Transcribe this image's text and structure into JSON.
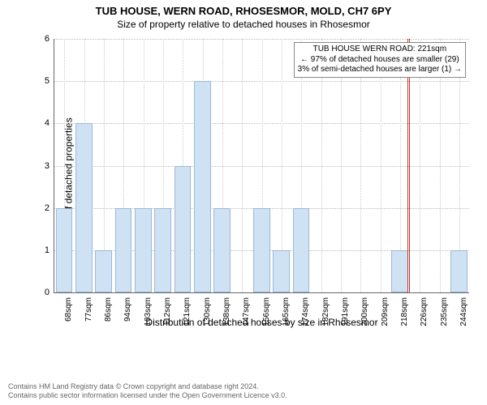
{
  "title": "TUB HOUSE, WERN ROAD, RHOSESMOR, MOLD, CH7 6PY",
  "subtitle": "Size of property relative to detached houses in Rhosesmor",
  "ylabel": "Number of detached properties",
  "xlabel": "Distribution of detached houses by size in Rhosesmor",
  "chart": {
    "type": "bar",
    "ylim": [
      0,
      6
    ],
    "ytick_step": 1,
    "categories": [
      "68sqm",
      "77sqm",
      "86sqm",
      "94sqm",
      "103sqm",
      "112sqm",
      "121sqm",
      "130sqm",
      "138sqm",
      "147sqm",
      "156sqm",
      "165sqm",
      "174sqm",
      "182sqm",
      "191sqm",
      "200sqm",
      "209sqm",
      "218sqm",
      "226sqm",
      "235sqm",
      "244sqm"
    ],
    "values": [
      2,
      4,
      1,
      2,
      2,
      2,
      3,
      5,
      2,
      0,
      2,
      1,
      2,
      0,
      0,
      0,
      0,
      1,
      0,
      0,
      1
    ],
    "bar_color": "#cfe2f3",
    "bar_border_color": "#9db8d8",
    "grid_color": "#cccccc",
    "axis_color": "#666666",
    "background_color": "#ffffff",
    "bar_width_ratio": 0.85,
    "marker_sqm": 221,
    "marker_color": "#c0392b"
  },
  "annotation": {
    "line1": "TUB HOUSE WERN ROAD: 221sqm",
    "line2": "← 97% of detached houses are smaller (29)",
    "line3": "3% of semi-detached houses are larger (1) →"
  },
  "footer": {
    "line1": "Contains HM Land Registry data © Crown copyright and database right 2024.",
    "line2": "Contains public sector information licensed under the Open Government Licence v3.0."
  },
  "fonts": {
    "title_size": 13,
    "subtitle_size": 12,
    "label_size": 12,
    "tick_size": 10,
    "anno_size": 10,
    "footer_size": 9
  }
}
